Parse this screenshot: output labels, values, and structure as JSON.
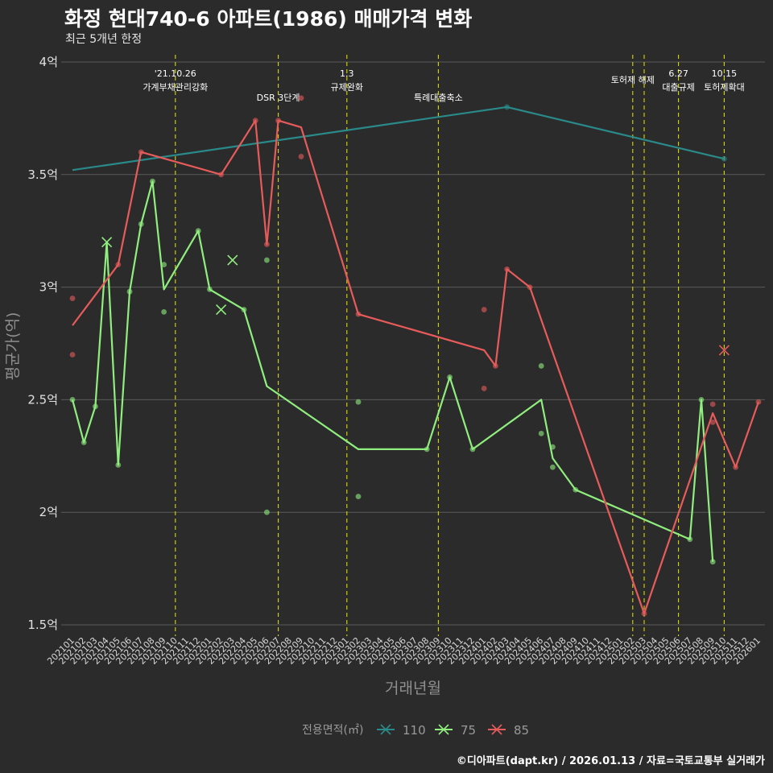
{
  "title": "화정 현대740-6 아파트(1986) 매매가격 변화",
  "subtitle": "최근 5개년 한정",
  "caption": "©디아파트(dapt.kr) / 2026.01.13 / 자료=국토교통부 실거래가",
  "colors": {
    "background": "#2b2b2b",
    "grid": "#5a5a5a",
    "event_line": "#d9d900",
    "s110": "#2a8a8a",
    "s75": "#90ee7e",
    "s85": "#e85b5b"
  },
  "chart_data": {
    "type": "line",
    "xlabel": "거래년월",
    "ylabel": "평균가(억)",
    "ylim": [
      1.45,
      4.05
    ],
    "yticks": [
      1.5,
      2,
      2.5,
      3,
      3.5,
      4
    ],
    "ytick_labels": [
      "1.5억",
      "2억",
      "2.5억",
      "3억",
      "3.5억",
      "4억"
    ],
    "categories": [
      "202101",
      "202102",
      "202103",
      "202104",
      "202105",
      "202106",
      "202107",
      "202108",
      "202109",
      "202110",
      "202111",
      "202112",
      "202201",
      "202202",
      "202203",
      "202204",
      "202205",
      "202206",
      "202207",
      "202208",
      "202209",
      "202210",
      "202211",
      "202212",
      "202301",
      "202302",
      "202303",
      "202304",
      "202305",
      "202306",
      "202307",
      "202308",
      "202309",
      "202310",
      "202311",
      "202312",
      "202401",
      "202402",
      "202403",
      "202404",
      "202405",
      "202406",
      "202407",
      "202408",
      "202409",
      "202410",
      "202411",
      "202412",
      "202501",
      "202502",
      "202503",
      "202504",
      "202505",
      "202506",
      "202507",
      "202508",
      "202509",
      "202510",
      "202511",
      "202512",
      "202601"
    ],
    "legend": {
      "title": "전용면적(㎡)",
      "position": "bottom"
    },
    "series": [
      {
        "name": "110",
        "color_key": "s110",
        "line": [
          [
            "202101",
            3.52
          ],
          [
            "202403",
            3.8
          ],
          [
            "202510",
            3.57
          ]
        ],
        "points": [
          [
            "202403",
            3.8
          ],
          [
            "202510",
            3.57
          ]
        ],
        "cancelled": []
      },
      {
        "name": "75",
        "color_key": "s75",
        "line": [
          [
            "202101",
            2.5
          ],
          [
            "202102",
            2.31
          ],
          [
            "202103",
            2.47
          ],
          [
            "202104",
            3.2
          ],
          [
            "202105",
            2.21
          ],
          [
            "202106",
            2.98
          ],
          [
            "202107",
            3.28
          ],
          [
            "202108",
            3.47
          ],
          [
            "202109",
            2.99
          ],
          [
            "202112",
            3.25
          ],
          [
            "202201",
            2.99
          ],
          [
            "202204",
            2.9
          ],
          [
            "202206",
            2.56
          ],
          [
            "202302",
            2.28
          ],
          [
            "202308",
            2.28
          ],
          [
            "202310",
            2.6
          ],
          [
            "202312",
            2.28
          ],
          [
            "202406",
            2.5
          ],
          [
            "202407",
            2.24
          ],
          [
            "202409",
            2.1
          ],
          [
            "202507",
            1.88
          ],
          [
            "202508",
            2.5
          ],
          [
            "202509",
            1.78
          ]
        ],
        "points": [
          [
            "202101",
            2.5
          ],
          [
            "202102",
            2.31
          ],
          [
            "202103",
            2.47
          ],
          [
            "202105",
            2.21
          ],
          [
            "202106",
            2.98
          ],
          [
            "202107",
            3.28
          ],
          [
            "202108",
            3.47
          ],
          [
            "202109",
            3.1
          ],
          [
            "202109",
            2.89
          ],
          [
            "202112",
            3.25
          ],
          [
            "202201",
            2.99
          ],
          [
            "202204",
            2.9
          ],
          [
            "202206",
            3.12
          ],
          [
            "202206",
            2.0
          ],
          [
            "202302",
            2.49
          ],
          [
            "202302",
            2.07
          ],
          [
            "202308",
            2.28
          ],
          [
            "202310",
            2.6
          ],
          [
            "202312",
            2.28
          ],
          [
            "202406",
            2.65
          ],
          [
            "202406",
            2.35
          ],
          [
            "202407",
            2.29
          ],
          [
            "202407",
            2.2
          ],
          [
            "202409",
            2.1
          ],
          [
            "202507",
            1.88
          ],
          [
            "202508",
            2.5
          ],
          [
            "202509",
            1.78
          ]
        ],
        "cancelled": [
          [
            "202104",
            3.2
          ],
          [
            "202202",
            2.9
          ],
          [
            "202203",
            3.12
          ]
        ]
      },
      {
        "name": "85",
        "color_key": "s85",
        "line": [
          [
            "202101",
            2.83
          ],
          [
            "202105",
            3.1
          ],
          [
            "202107",
            3.6
          ],
          [
            "202202",
            3.5
          ],
          [
            "202205",
            3.74
          ],
          [
            "202206",
            3.19
          ],
          [
            "202207",
            3.74
          ],
          [
            "202209",
            3.71
          ],
          [
            "202302",
            2.88
          ],
          [
            "202401",
            2.72
          ],
          [
            "202402",
            2.65
          ],
          [
            "202403",
            3.08
          ],
          [
            "202405",
            3.0
          ],
          [
            "202503",
            1.55
          ],
          [
            "202509",
            2.44
          ],
          [
            "202511",
            2.2
          ],
          [
            "202601",
            2.49
          ]
        ],
        "points": [
          [
            "202101",
            2.95
          ],
          [
            "202101",
            2.7
          ],
          [
            "202105",
            3.1
          ],
          [
            "202107",
            3.6
          ],
          [
            "202202",
            3.5
          ],
          [
            "202205",
            3.74
          ],
          [
            "202206",
            3.19
          ],
          [
            "202207",
            3.74
          ],
          [
            "202209",
            3.84
          ],
          [
            "202209",
            3.58
          ],
          [
            "202302",
            2.88
          ],
          [
            "202401",
            2.9
          ],
          [
            "202401",
            2.55
          ],
          [
            "202402",
            2.65
          ],
          [
            "202403",
            3.08
          ],
          [
            "202405",
            3.0
          ],
          [
            "202503",
            1.55
          ],
          [
            "202509",
            2.48
          ],
          [
            "202509",
            2.4
          ],
          [
            "202511",
            2.2
          ],
          [
            "202601",
            2.49
          ]
        ],
        "cancelled": [
          [
            "202510",
            2.72
          ]
        ]
      }
    ],
    "events": [
      {
        "x": "202110",
        "line1": "'21.10.26",
        "line2": "가계부채관리강화"
      },
      {
        "x": "202207",
        "line1": "",
        "line2": "DSR 3단계"
      },
      {
        "x": "202301",
        "line1": "1.3",
        "line2": "규제완화"
      },
      {
        "x": "202309",
        "line1": "",
        "line2": "특례대출축소"
      },
      {
        "x": "202502",
        "line1": "토허제 해제",
        "line2": ""
      },
      {
        "x": "202503",
        "line1": "",
        "line2": ""
      },
      {
        "x": "202506",
        "line1": "6.27",
        "line2": "대출규제"
      },
      {
        "x": "202510",
        "line1": "10.15",
        "line2": "토허제확대"
      }
    ]
  }
}
